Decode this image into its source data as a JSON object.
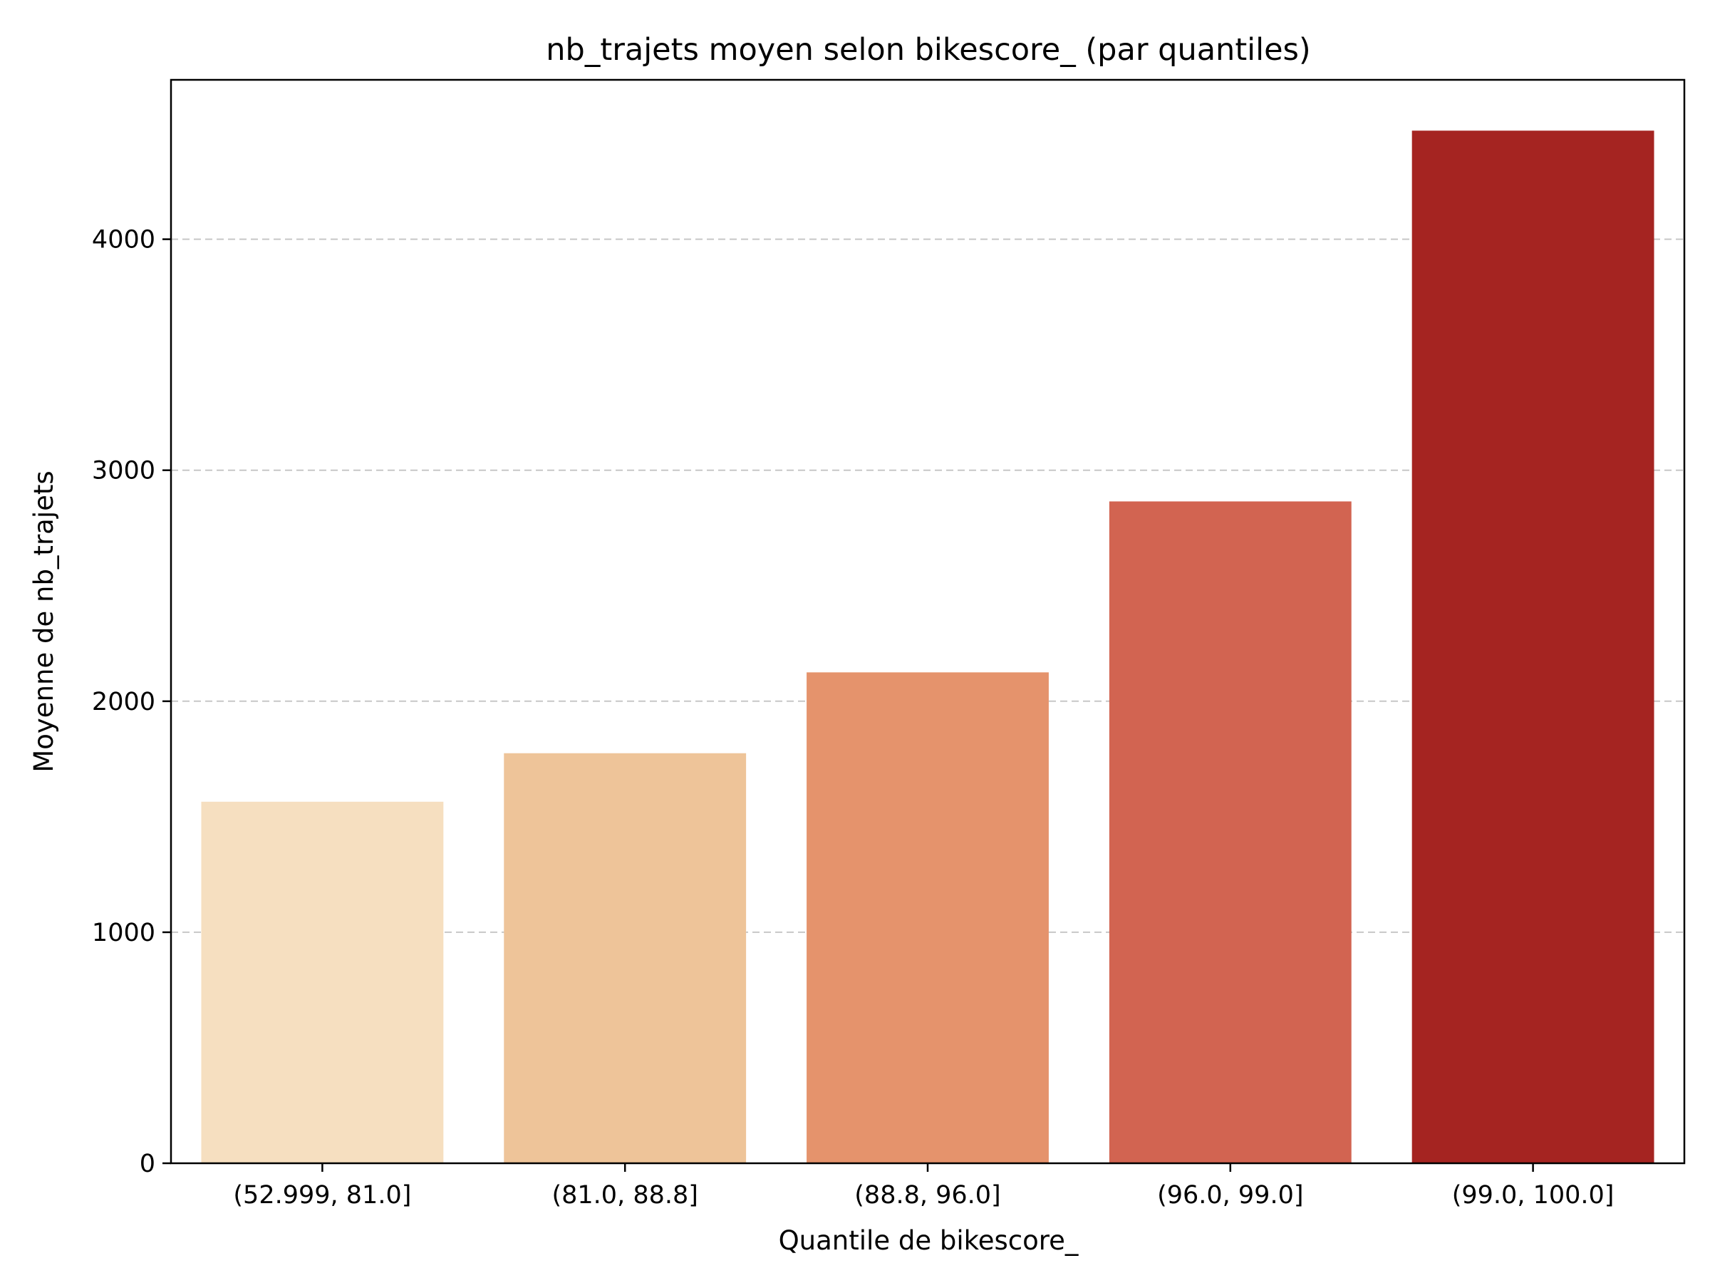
{
  "chart_data": {
    "type": "bar",
    "title": "nb_trajets moyen selon bikescore_ (par quantiles)",
    "xlabel": "Quantile de bikescore_",
    "ylabel": "Moyenne de nb_trajets",
    "categories": [
      "(52.999, 81.0]",
      "(81.0, 88.8]",
      "(88.8, 96.0]",
      "(96.0, 99.0]",
      "(99.0, 100.0]"
    ],
    "values": [
      1565,
      1775,
      2125,
      2865,
      4470
    ],
    "colors": [
      "#f6dfc0",
      "#eec499",
      "#e5936c",
      "#d26451",
      "#a52421"
    ],
    "ylim": [
      0,
      4690
    ],
    "yticks": [
      0,
      1000,
      2000,
      3000,
      4000
    ],
    "grid": "y-dashed",
    "legend": "none"
  }
}
